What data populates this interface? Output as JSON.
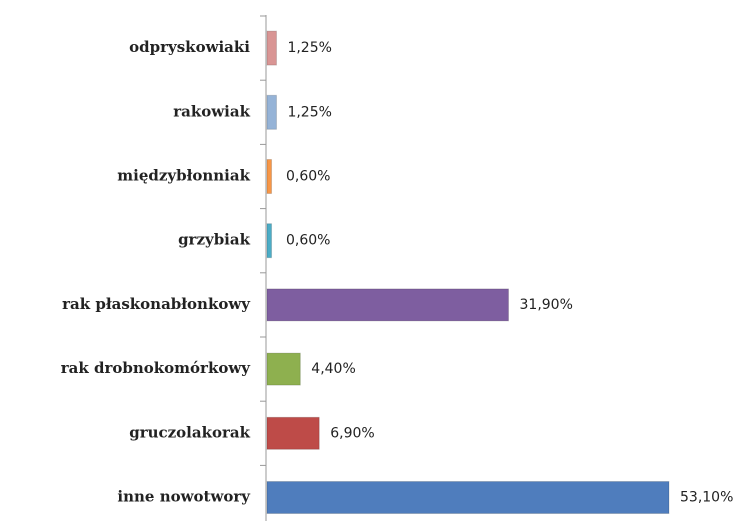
{
  "chart_data": {
    "type": "bar",
    "orientation": "horizontal",
    "categories": [
      "odpryskowiaki",
      "rakowiak",
      "międzybłonniak",
      "grzybiak",
      "rak płaskonabłonkowy",
      "rak drobnokomórkowy",
      "gruczolakorak",
      "inne nowotwory"
    ],
    "values": [
      1.25,
      1.25,
      0.6,
      0.6,
      31.9,
      4.4,
      6.9,
      53.1
    ],
    "value_labels": [
      "1,25%",
      "1,25%",
      "0,60%",
      "0,60%",
      "31,90%",
      "4,40%",
      "6,90%",
      "53,10%"
    ],
    "colors": [
      "#d99594",
      "#95b3d7",
      "#f79646",
      "#4bacc6",
      "#7e5ea0",
      "#8eb04f",
      "#be4b48",
      "#4f7dbd"
    ]
  }
}
